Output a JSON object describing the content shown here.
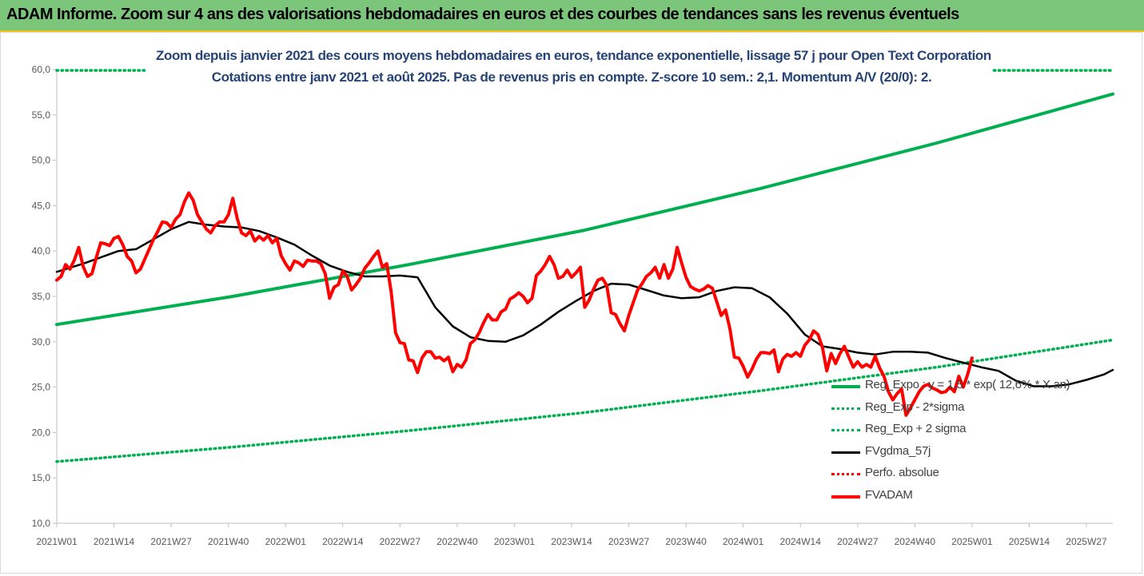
{
  "banner": {
    "title": "ADAM Informe. Zoom sur 4 ans des valorisations hebdomadaires en euros et des courbes de tendances sans les revenus éventuels"
  },
  "colors": {
    "regression": "#00b050",
    "fvgdma": "#000000",
    "fvadam": "#ff0000",
    "perfo": "#ff0000",
    "title": "#264478",
    "banner_bg": "#7bc67a"
  },
  "chart_data": {
    "type": "line",
    "title": "Zoom depuis janvier 2021 des cours moyens hebdomadaires en euros, tendance exponentielle, lissage 57 j pour Open Text Corporation",
    "subtitle": "Cotations entre janv 2021 et août 2025.  Pas de revenus pris en compte. Z-score 10 sem.: 2,1. Momentum A/V (20/0): 2.",
    "xlabel": "",
    "ylabel": "",
    "ylim": [
      10,
      60
    ],
    "y_ticks": [
      "10,0",
      "15,0",
      "20,0",
      "25,0",
      "30,0",
      "35,0",
      "40,0",
      "45,0",
      "50,0",
      "55,0",
      "60,0"
    ],
    "x_ticks": [
      {
        "label": "2021W01",
        "week": 0
      },
      {
        "label": "2021W14",
        "week": 13
      },
      {
        "label": "2021W27",
        "week": 26
      },
      {
        "label": "2021W40",
        "week": 39
      },
      {
        "label": "2022W01",
        "week": 52
      },
      {
        "label": "2022W14",
        "week": 65
      },
      {
        "label": "2022W27",
        "week": 78
      },
      {
        "label": "2022W40",
        "week": 91
      },
      {
        "label": "2023W01",
        "week": 104
      },
      {
        "label": "2023W14",
        "week": 117
      },
      {
        "label": "2023W27",
        "week": 130
      },
      {
        "label": "2023W40",
        "week": 143
      },
      {
        "label": "2024W01",
        "week": 156
      },
      {
        "label": "2024W14",
        "week": 169
      },
      {
        "label": "2024W27",
        "week": 182
      },
      {
        "label": "2024W40",
        "week": 195
      },
      {
        "label": "2025W01",
        "week": 208
      },
      {
        "label": "2025W14",
        "week": 221
      },
      {
        "label": "2025W27",
        "week": 234
      }
    ],
    "x_max_week": 240,
    "grid": false,
    "legend_position": "right",
    "series": [
      {
        "name": "Reg_Expo : y = 1,5 * exp( 12,6% * X an)",
        "style": "solid-thick",
        "color": "#00b050",
        "points": [
          [
            0,
            31.9
          ],
          [
            40,
            35.0
          ],
          [
            80,
            38.5
          ],
          [
            120,
            42.3
          ],
          [
            160,
            46.9
          ],
          [
            200,
            51.9
          ],
          [
            240,
            57.3
          ]
        ]
      },
      {
        "name": "Reg_Exp - 2*sigma",
        "style": "dotted",
        "color": "#00b050",
        "points": [
          [
            0,
            16.8
          ],
          [
            40,
            18.4
          ],
          [
            80,
            20.2
          ],
          [
            120,
            22.2
          ],
          [
            160,
            24.6
          ],
          [
            200,
            27.2
          ],
          [
            240,
            30.2
          ]
        ]
      },
      {
        "name": "Reg_Exp + 2 sigma",
        "style": "dotted",
        "color": "#00b050",
        "points": [
          [
            0,
            59.9
          ],
          [
            20,
            59.9
          ]
        ],
        "points2": [
          [
            213,
            59.9
          ],
          [
            240,
            59.9
          ]
        ]
      },
      {
        "name": "FVgdma_57j",
        "style": "solid",
        "color": "#000000",
        "points": [
          [
            0,
            37.7
          ],
          [
            6,
            38.6
          ],
          [
            10,
            39.3
          ],
          [
            14,
            40.0
          ],
          [
            18,
            40.2
          ],
          [
            22,
            41.3
          ],
          [
            26,
            42.4
          ],
          [
            30,
            43.2
          ],
          [
            34,
            42.9
          ],
          [
            38,
            42.7
          ],
          [
            42,
            42.6
          ],
          [
            46,
            42.2
          ],
          [
            50,
            41.5
          ],
          [
            54,
            40.7
          ],
          [
            58,
            39.5
          ],
          [
            62,
            38.4
          ],
          [
            66,
            37.7
          ],
          [
            70,
            37.2
          ],
          [
            74,
            37.2
          ],
          [
            78,
            37.3
          ],
          [
            82,
            37.1
          ],
          [
            86,
            33.8
          ],
          [
            90,
            31.7
          ],
          [
            94,
            30.5
          ],
          [
            98,
            30.1
          ],
          [
            102,
            30.0
          ],
          [
            106,
            30.7
          ],
          [
            110,
            31.9
          ],
          [
            114,
            33.3
          ],
          [
            118,
            34.5
          ],
          [
            122,
            35.6
          ],
          [
            126,
            36.4
          ],
          [
            130,
            36.3
          ],
          [
            134,
            35.7
          ],
          [
            138,
            35.1
          ],
          [
            142,
            34.8
          ],
          [
            146,
            34.9
          ],
          [
            150,
            35.6
          ],
          [
            154,
            36.0
          ],
          [
            158,
            35.9
          ],
          [
            162,
            34.9
          ],
          [
            166,
            33.1
          ],
          [
            170,
            30.8
          ],
          [
            174,
            29.5
          ],
          [
            178,
            29.2
          ],
          [
            182,
            28.8
          ],
          [
            186,
            28.6
          ],
          [
            190,
            28.9
          ],
          [
            194,
            28.9
          ],
          [
            198,
            28.8
          ],
          [
            202,
            28.2
          ],
          [
            206,
            27.7
          ],
          [
            210,
            27.2
          ],
          [
            214,
            26.8
          ],
          [
            218,
            25.7
          ],
          [
            222,
            25.1
          ],
          [
            226,
            25.1
          ],
          [
            230,
            25.3
          ],
          [
            234,
            25.8
          ],
          [
            238,
            26.4
          ],
          [
            240,
            26.9
          ]
        ]
      },
      {
        "name": "Perfo. absolue",
        "style": "dotted",
        "color": "#ff0000",
        "points": []
      },
      {
        "name": "FVADAM",
        "style": "solid-thick",
        "color": "#ff0000",
        "points": [
          [
            0,
            36.8
          ],
          [
            1,
            37.2
          ],
          [
            2,
            38.5
          ],
          [
            3,
            38.0
          ],
          [
            4,
            39.0
          ],
          [
            5,
            40.4
          ],
          [
            6,
            38.3
          ],
          [
            7,
            37.2
          ],
          [
            8,
            37.5
          ],
          [
            9,
            39.3
          ],
          [
            10,
            40.9
          ],
          [
            11,
            40.8
          ],
          [
            12,
            40.6
          ],
          [
            13,
            41.4
          ],
          [
            14,
            41.6
          ],
          [
            15,
            40.7
          ],
          [
            16,
            39.4
          ],
          [
            17,
            38.9
          ],
          [
            18,
            37.6
          ],
          [
            19,
            38.0
          ],
          [
            20,
            39.1
          ],
          [
            21,
            40.2
          ],
          [
            22,
            41.3
          ],
          [
            23,
            42.2
          ],
          [
            24,
            43.2
          ],
          [
            25,
            43.1
          ],
          [
            26,
            42.6
          ],
          [
            27,
            43.5
          ],
          [
            28,
            44.0
          ],
          [
            29,
            45.4
          ],
          [
            30,
            46.4
          ],
          [
            31,
            45.6
          ],
          [
            32,
            44.0
          ],
          [
            33,
            43.2
          ],
          [
            34,
            42.4
          ],
          [
            35,
            42.0
          ],
          [
            36,
            42.8
          ],
          [
            37,
            43.2
          ],
          [
            38,
            43.2
          ],
          [
            39,
            44.0
          ],
          [
            40,
            45.8
          ],
          [
            41,
            43.6
          ],
          [
            42,
            42.0
          ],
          [
            43,
            41.7
          ],
          [
            44,
            42.2
          ],
          [
            45,
            41.1
          ],
          [
            46,
            41.6
          ],
          [
            47,
            41.2
          ],
          [
            48,
            41.7
          ],
          [
            49,
            40.9
          ],
          [
            50,
            41.4
          ],
          [
            51,
            39.5
          ],
          [
            52,
            38.6
          ],
          [
            53,
            37.9
          ],
          [
            54,
            38.9
          ],
          [
            55,
            38.7
          ],
          [
            56,
            38.3
          ],
          [
            57,
            39.0
          ],
          [
            58,
            38.9
          ],
          [
            59,
            38.9
          ],
          [
            60,
            38.6
          ],
          [
            61,
            37.5
          ],
          [
            62,
            34.8
          ],
          [
            63,
            36.0
          ],
          [
            64,
            36.3
          ],
          [
            65,
            37.8
          ],
          [
            66,
            37.2
          ],
          [
            67,
            35.7
          ],
          [
            68,
            36.3
          ],
          [
            69,
            37.0
          ],
          [
            70,
            38.1
          ],
          [
            71,
            38.7
          ],
          [
            72,
            39.4
          ],
          [
            73,
            40.0
          ],
          [
            74,
            38.2
          ],
          [
            75,
            38.6
          ],
          [
            76,
            35.5
          ],
          [
            77,
            31.0
          ],
          [
            78,
            29.9
          ],
          [
            79,
            29.8
          ],
          [
            80,
            28.0
          ],
          [
            81,
            27.9
          ],
          [
            82,
            26.6
          ],
          [
            83,
            28.2
          ],
          [
            84,
            28.9
          ],
          [
            85,
            28.9
          ],
          [
            86,
            28.2
          ],
          [
            87,
            28.3
          ],
          [
            88,
            27.9
          ],
          [
            89,
            28.3
          ],
          [
            90,
            26.7
          ],
          [
            91,
            27.5
          ],
          [
            92,
            27.2
          ],
          [
            93,
            28.0
          ],
          [
            94,
            29.8
          ],
          [
            95,
            30.2
          ],
          [
            96,
            31.0
          ],
          [
            97,
            32.1
          ],
          [
            98,
            33.0
          ],
          [
            99,
            32.4
          ],
          [
            100,
            32.4
          ],
          [
            101,
            33.3
          ],
          [
            102,
            33.6
          ],
          [
            103,
            34.7
          ],
          [
            104,
            35.0
          ],
          [
            105,
            35.4
          ],
          [
            106,
            35.0
          ],
          [
            107,
            34.3
          ],
          [
            108,
            34.8
          ],
          [
            109,
            37.3
          ],
          [
            110,
            37.8
          ],
          [
            111,
            38.5
          ],
          [
            112,
            39.4
          ],
          [
            113,
            38.5
          ],
          [
            114,
            37.0
          ],
          [
            115,
            37.2
          ],
          [
            116,
            37.9
          ],
          [
            117,
            37.1
          ],
          [
            118,
            37.6
          ],
          [
            119,
            38.2
          ],
          [
            120,
            33.8
          ],
          [
            121,
            34.6
          ],
          [
            122,
            35.8
          ],
          [
            123,
            36.8
          ],
          [
            124,
            37.0
          ],
          [
            125,
            36.2
          ],
          [
            126,
            33.2
          ],
          [
            127,
            33.0
          ],
          [
            128,
            32.0
          ],
          [
            129,
            31.2
          ],
          [
            130,
            32.9
          ],
          [
            131,
            34.3
          ],
          [
            132,
            35.7
          ],
          [
            133,
            36.4
          ],
          [
            134,
            37.2
          ],
          [
            135,
            37.6
          ],
          [
            136,
            38.2
          ],
          [
            137,
            37.0
          ],
          [
            138,
            38.5
          ],
          [
            139,
            37.0
          ],
          [
            140,
            38.0
          ],
          [
            141,
            40.4
          ],
          [
            142,
            38.7
          ],
          [
            143,
            37.1
          ],
          [
            144,
            36.1
          ],
          [
            145,
            35.8
          ],
          [
            146,
            35.6
          ],
          [
            147,
            35.8
          ],
          [
            148,
            36.2
          ],
          [
            149,
            35.9
          ],
          [
            150,
            34.4
          ],
          [
            151,
            32.9
          ],
          [
            152,
            33.5
          ],
          [
            153,
            31.4
          ],
          [
            154,
            28.3
          ],
          [
            155,
            28.2
          ],
          [
            156,
            27.3
          ],
          [
            157,
            26.1
          ],
          [
            158,
            27.0
          ],
          [
            159,
            28.1
          ],
          [
            160,
            28.8
          ],
          [
            161,
            28.8
          ],
          [
            162,
            28.7
          ],
          [
            163,
            29.1
          ],
          [
            164,
            26.7
          ],
          [
            165,
            28.1
          ],
          [
            166,
            28.6
          ],
          [
            167,
            28.4
          ],
          [
            168,
            28.8
          ],
          [
            169,
            28.4
          ],
          [
            170,
            29.6
          ],
          [
            171,
            30.2
          ],
          [
            172,
            31.2
          ],
          [
            173,
            30.8
          ],
          [
            174,
            29.4
          ],
          [
            175,
            26.8
          ],
          [
            176,
            28.7
          ],
          [
            177,
            27.6
          ],
          [
            178,
            28.7
          ],
          [
            179,
            29.5
          ],
          [
            180,
            28.3
          ],
          [
            181,
            27.2
          ],
          [
            182,
            27.8
          ],
          [
            183,
            27.2
          ],
          [
            184,
            27.5
          ],
          [
            185,
            27.2
          ],
          [
            186,
            28.4
          ],
          [
            187,
            27.1
          ],
          [
            188,
            26.2
          ],
          [
            189,
            24.5
          ],
          [
            190,
            23.6
          ],
          [
            191,
            24.3
          ],
          [
            192,
            24.8
          ],
          [
            193,
            21.9
          ],
          [
            194,
            22.7
          ],
          [
            195,
            23.6
          ],
          [
            196,
            24.5
          ],
          [
            197,
            25.1
          ],
          [
            198,
            25.3
          ],
          [
            199,
            24.9
          ],
          [
            200,
            24.7
          ],
          [
            201,
            24.4
          ],
          [
            202,
            24.5
          ],
          [
            203,
            25.0
          ],
          [
            204,
            24.5
          ],
          [
            205,
            26.2
          ],
          [
            206,
            25.0
          ],
          [
            207,
            26.4
          ],
          [
            208,
            28.2
          ]
        ]
      }
    ]
  }
}
